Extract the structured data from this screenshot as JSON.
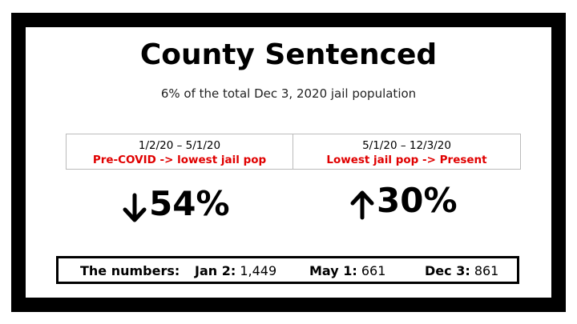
{
  "title": "County Sentenced",
  "subtitle": "6% of the total Dec 3, 2020 jail population",
  "periods": [
    {
      "dates": "1/2/20 – 5/1/20",
      "label": "Pre-COVID -> lowest jail pop",
      "change": "54%"
    },
    {
      "dates": "5/1/20 – 12/3/20",
      "label": "Lowest jail pop -> Present",
      "change": "30%"
    }
  ],
  "numbers": {
    "label": "The numbers:",
    "items": [
      {
        "date": "Jan 2:",
        "value": "1,449"
      },
      {
        "date": "May 1:",
        "value": "661"
      },
      {
        "date": "Dec 3:",
        "value": "861"
      }
    ]
  }
}
